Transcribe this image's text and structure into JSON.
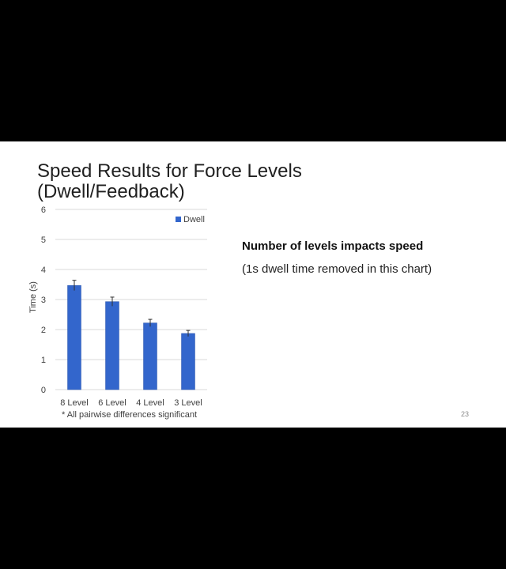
{
  "slide": {
    "title_line1": "Speed Results for Force Levels",
    "title_line2": "(Dwell/Feedback)",
    "heading": "Number of levels impacts speed",
    "subtext": "(1s dwell time removed in this chart)",
    "footnote": "* All pairwise differences significant",
    "page_number": "23"
  },
  "colors": {
    "bar": "#3366cc",
    "bar_edge": "#2a55aa",
    "grid": "#d9d9d9",
    "error_bar": "#303030"
  },
  "chart_data": {
    "type": "bar",
    "categories": [
      "8 Level",
      "6 Level",
      "4 Level",
      "3 Level"
    ],
    "series": [
      {
        "name": "Dwell",
        "values": [
          3.47,
          2.93,
          2.22,
          1.87
        ],
        "error": [
          0.17,
          0.15,
          0.12,
          0.1
        ]
      }
    ],
    "ylabel": "Time (s)",
    "xlabel": "",
    "ylim": [
      0,
      6
    ],
    "yticks": [
      0,
      1,
      2,
      3,
      4,
      5,
      6
    ],
    "grid": true,
    "legend_position": "top-right"
  }
}
